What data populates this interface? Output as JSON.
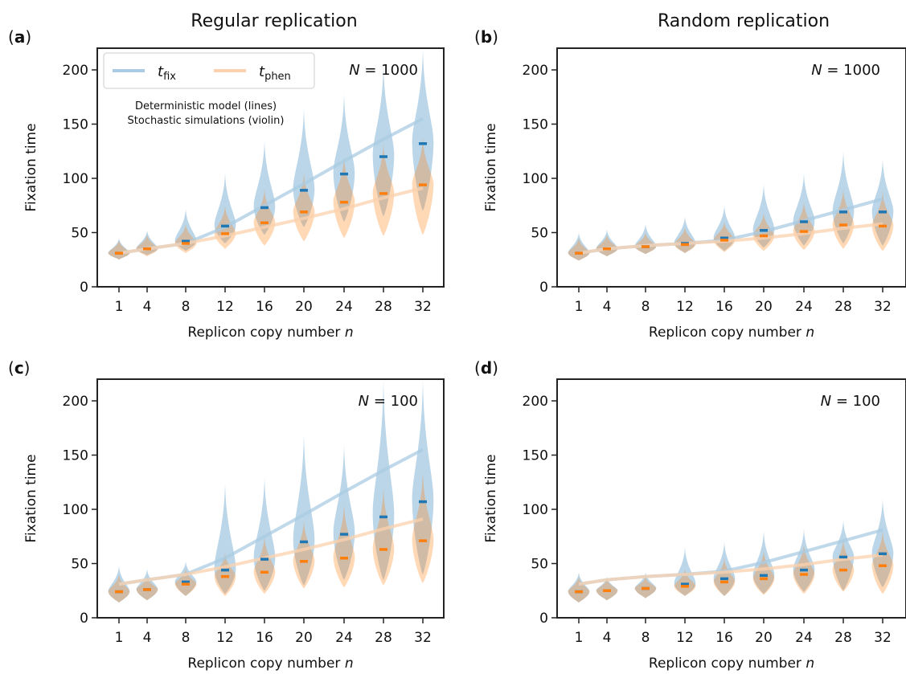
{
  "column_titles": [
    "Regular replication",
    "Random replication"
  ],
  "legend": {
    "fix_label": "t",
    "fix_sub": "fix",
    "phen_label": "t",
    "phen_sub": "phen",
    "note_line1": "Deterministic model (lines)",
    "note_line2": "Stochastic simulations (violin)"
  },
  "colors": {
    "fix": "#1f77b4",
    "phen": "#ff7f0e",
    "fix_line": "#a9cbe3",
    "phen_line": "#fbd2ad"
  },
  "chart_data": [
    {
      "type": "violin",
      "panel": "(a)",
      "panel_letter": "a",
      "title": "Regular replication",
      "annotation_var": "N",
      "annotation_value": "= 1000",
      "xlabel": "Replicon copy number",
      "xlabel_var": "n",
      "ylabel": "Fixation time",
      "x": [
        1,
        4,
        8,
        12,
        16,
        20,
        24,
        28,
        32
      ],
      "ylim": [
        0,
        220
      ],
      "yticks": [
        0,
        50,
        100,
        150,
        200
      ],
      "deterministic": {
        "t_fix": [
          31,
          35,
          40,
          55,
          75,
          95,
          116,
          136,
          155
        ],
        "t_phen": [
          31,
          35,
          40,
          47,
          55,
          63,
          72,
          82,
          91
        ]
      },
      "violins": {
        "t_fix": [
          {
            "median": 31,
            "min": 25,
            "max": 45
          },
          {
            "median": 35,
            "min": 29,
            "max": 52
          },
          {
            "median": 42,
            "min": 33,
            "max": 72
          },
          {
            "median": 56,
            "min": 40,
            "max": 105
          },
          {
            "median": 73,
            "min": 48,
            "max": 135
          },
          {
            "median": 89,
            "min": 55,
            "max": 165
          },
          {
            "median": 104,
            "min": 60,
            "max": 178
          },
          {
            "median": 120,
            "min": 65,
            "max": 205
          },
          {
            "median": 132,
            "min": 70,
            "max": 220
          }
        ],
        "t_phen": [
          {
            "median": 31,
            "min": 25,
            "max": 43
          },
          {
            "median": 35,
            "min": 28,
            "max": 48
          },
          {
            "median": 40,
            "min": 31,
            "max": 58
          },
          {
            "median": 49,
            "min": 35,
            "max": 75
          },
          {
            "median": 59,
            "min": 38,
            "max": 90
          },
          {
            "median": 69,
            "min": 42,
            "max": 105
          },
          {
            "median": 78,
            "min": 45,
            "max": 120
          },
          {
            "median": 86,
            "min": 47,
            "max": 132
          },
          {
            "median": 94,
            "min": 48,
            "max": 138
          }
        ]
      }
    },
    {
      "type": "violin",
      "panel": "(b)",
      "panel_letter": "b",
      "title": "Random replication",
      "annotation_var": "N",
      "annotation_value": "= 1000",
      "xlabel": "Replicon copy number",
      "xlabel_var": "n",
      "ylabel": "Fixation time",
      "x": [
        1,
        4,
        8,
        12,
        16,
        20,
        24,
        28,
        32
      ],
      "ylim": [
        0,
        220
      ],
      "yticks": [
        0,
        50,
        100,
        150,
        200
      ],
      "deterministic": {
        "t_fix": [
          31,
          35,
          38,
          40,
          43,
          51,
          61,
          71,
          81
        ],
        "t_phen": [
          31,
          35,
          38,
          40,
          42,
          45,
          49,
          54,
          58
        ]
      },
      "violins": {
        "t_fix": [
          {
            "median": 31,
            "min": 24,
            "max": 50
          },
          {
            "median": 35,
            "min": 28,
            "max": 53
          },
          {
            "median": 37,
            "min": 30,
            "max": 58
          },
          {
            "median": 40,
            "min": 31,
            "max": 65
          },
          {
            "median": 45,
            "min": 33,
            "max": 75
          },
          {
            "median": 52,
            "min": 36,
            "max": 95
          },
          {
            "median": 60,
            "min": 38,
            "max": 105
          },
          {
            "median": 69,
            "min": 40,
            "max": 125
          },
          {
            "median": 69,
            "min": 38,
            "max": 118
          }
        ],
        "t_phen": [
          {
            "median": 31,
            "min": 24,
            "max": 45
          },
          {
            "median": 35,
            "min": 28,
            "max": 48
          },
          {
            "median": 37,
            "min": 30,
            "max": 50
          },
          {
            "median": 39,
            "min": 31,
            "max": 55
          },
          {
            "median": 43,
            "min": 32,
            "max": 60
          },
          {
            "median": 47,
            "min": 33,
            "max": 68
          },
          {
            "median": 51,
            "min": 34,
            "max": 78
          },
          {
            "median": 57,
            "min": 35,
            "max": 90
          },
          {
            "median": 56,
            "min": 33,
            "max": 88
          }
        ]
      }
    },
    {
      "type": "violin",
      "panel": "(c)",
      "panel_letter": "c",
      "title": "",
      "annotation_var": "N",
      "annotation_value": "= 100",
      "xlabel": "Replicon copy number",
      "xlabel_var": "n",
      "ylabel": "Fixation time",
      "x": [
        1,
        4,
        8,
        12,
        16,
        20,
        24,
        28,
        32
      ],
      "ylim": [
        0,
        220
      ],
      "yticks": [
        0,
        50,
        100,
        150,
        200
      ],
      "deterministic": {
        "t_fix": [
          31,
          35,
          40,
          55,
          75,
          95,
          116,
          136,
          155
        ],
        "t_phen": [
          31,
          35,
          40,
          47,
          55,
          63,
          72,
          82,
          91
        ]
      },
      "violins": {
        "t_fix": [
          {
            "median": 24,
            "min": 14,
            "max": 48
          },
          {
            "median": 26,
            "min": 16,
            "max": 45
          },
          {
            "median": 33,
            "min": 20,
            "max": 52
          },
          {
            "median": 44,
            "min": 22,
            "max": 125
          },
          {
            "median": 54,
            "min": 25,
            "max": 130
          },
          {
            "median": 70,
            "min": 30,
            "max": 170
          },
          {
            "median": 77,
            "min": 35,
            "max": 160
          },
          {
            "median": 93,
            "min": 35,
            "max": 220
          },
          {
            "median": 107,
            "min": 40,
            "max": 220
          }
        ],
        "t_phen": [
          {
            "median": 24,
            "min": 14,
            "max": 40
          },
          {
            "median": 26,
            "min": 16,
            "max": 38
          },
          {
            "median": 31,
            "min": 20,
            "max": 45
          },
          {
            "median": 38,
            "min": 20,
            "max": 60
          },
          {
            "median": 42,
            "min": 22,
            "max": 75
          },
          {
            "median": 52,
            "min": 27,
            "max": 90
          },
          {
            "median": 55,
            "min": 28,
            "max": 105
          },
          {
            "median": 63,
            "min": 30,
            "max": 120
          },
          {
            "median": 71,
            "min": 32,
            "max": 135
          }
        ]
      }
    },
    {
      "type": "violin",
      "panel": "(d)",
      "panel_letter": "d",
      "title": "",
      "annotation_var": "N",
      "annotation_value": "= 100",
      "xlabel": "Replicon copy number",
      "xlabel_var": "n",
      "ylabel": "Fixation time",
      "x": [
        1,
        4,
        8,
        12,
        16,
        20,
        24,
        28,
        32
      ],
      "ylim": [
        0,
        220
      ],
      "yticks": [
        0,
        50,
        100,
        150,
        200
      ],
      "deterministic": {
        "t_fix": [
          31,
          35,
          38,
          40,
          43,
          51,
          61,
          71,
          81
        ],
        "t_phen": [
          31,
          35,
          38,
          40,
          42,
          45,
          49,
          54,
          58
        ]
      },
      "violins": {
        "t_fix": [
          {
            "median": 24,
            "min": 14,
            "max": 42
          },
          {
            "median": 25,
            "min": 16,
            "max": 38
          },
          {
            "median": 27,
            "min": 18,
            "max": 42
          },
          {
            "median": 31,
            "min": 20,
            "max": 65
          },
          {
            "median": 36,
            "min": 20,
            "max": 70
          },
          {
            "median": 39,
            "min": 22,
            "max": 80
          },
          {
            "median": 44,
            "min": 24,
            "max": 82
          },
          {
            "median": 56,
            "min": 25,
            "max": 90
          },
          {
            "median": 59,
            "min": 28,
            "max": 110
          }
        ],
        "t_phen": [
          {
            "median": 24,
            "min": 14,
            "max": 38
          },
          {
            "median": 25,
            "min": 16,
            "max": 36
          },
          {
            "median": 27,
            "min": 18,
            "max": 38
          },
          {
            "median": 29,
            "min": 20,
            "max": 45
          },
          {
            "median": 33,
            "min": 20,
            "max": 55
          },
          {
            "median": 36,
            "min": 21,
            "max": 62
          },
          {
            "median": 40,
            "min": 22,
            "max": 68
          },
          {
            "median": 44,
            "min": 24,
            "max": 72
          },
          {
            "median": 48,
            "min": 22,
            "max": 80
          }
        ]
      }
    }
  ]
}
